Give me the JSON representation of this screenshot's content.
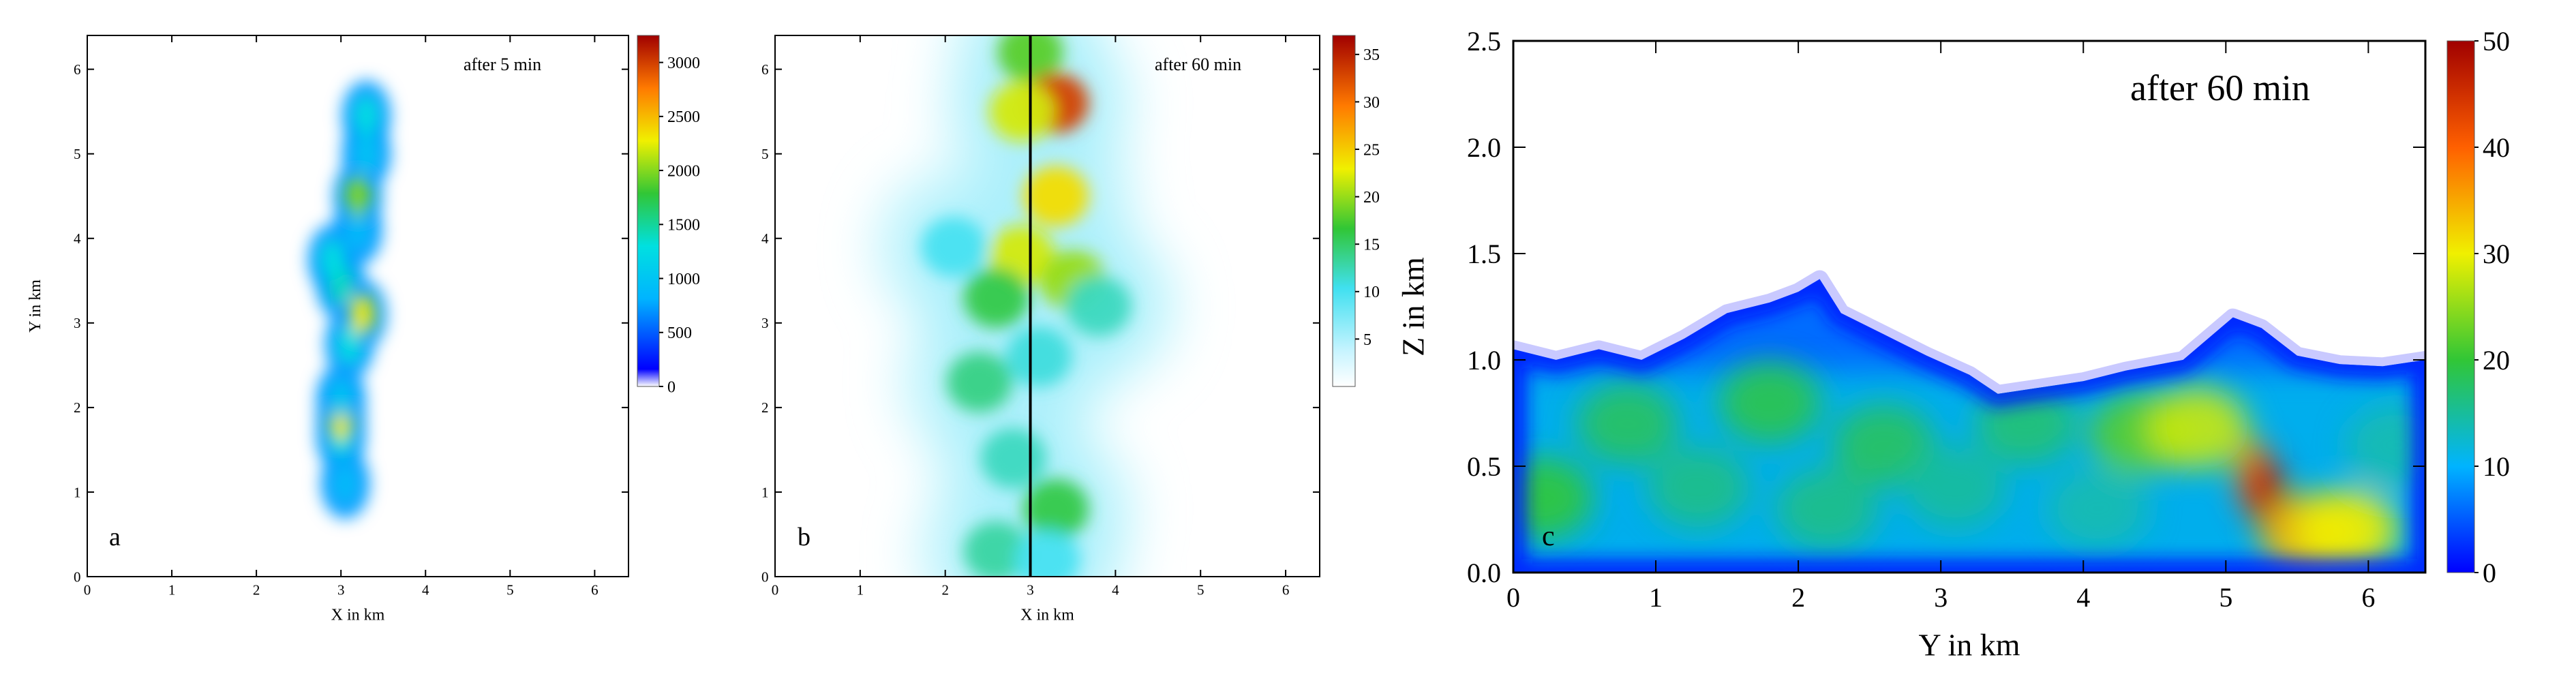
{
  "chart_data": [
    {
      "type": "heatmap",
      "panel_label": "a",
      "annotation": "after 5 min",
      "xlabel": "X in km",
      "ylabel": "Y in km",
      "xlim": [
        0,
        6.4
      ],
      "ylim": [
        0,
        6.4
      ],
      "xticks": [
        "0",
        "1",
        "2",
        "3",
        "4",
        "5",
        "6"
      ],
      "yticks": [
        "0",
        "1",
        "2",
        "3",
        "4",
        "5",
        "6"
      ],
      "colorbar": {
        "min": 0,
        "max": 3250,
        "ticks": [
          "0",
          "500",
          "1000",
          "1500",
          "2000",
          "2500",
          "3000"
        ]
      },
      "blobs": [
        {
          "x": 3.05,
          "y": 1.1,
          "v": 900
        },
        {
          "x": 3.0,
          "y": 1.65,
          "v": 1300
        },
        {
          "x": 3.0,
          "y": 1.85,
          "v": 2300
        },
        {
          "x": 3.0,
          "y": 2.1,
          "v": 1000
        },
        {
          "x": 3.1,
          "y": 2.75,
          "v": 1300
        },
        {
          "x": 3.25,
          "y": 3.1,
          "v": 2300
        },
        {
          "x": 3.0,
          "y": 3.45,
          "v": 1400
        },
        {
          "x": 2.9,
          "y": 3.75,
          "v": 1300
        },
        {
          "x": 3.2,
          "y": 4.1,
          "v": 900
        },
        {
          "x": 3.2,
          "y": 4.5,
          "v": 2000
        },
        {
          "x": 3.3,
          "y": 5.0,
          "v": 1000
        },
        {
          "x": 3.3,
          "y": 5.45,
          "v": 1300
        }
      ]
    },
    {
      "type": "heatmap",
      "panel_label": "b",
      "annotation": "after 60 min",
      "xlabel": "X in km",
      "ylabel": "",
      "xlim": [
        0,
        6.4
      ],
      "ylim": [
        0,
        6.4
      ],
      "xticks": [
        "0",
        "1",
        "2",
        "3",
        "4",
        "5",
        "6"
      ],
      "yticks": [
        "0",
        "1",
        "2",
        "3",
        "4",
        "5",
        "6"
      ],
      "cross_section_line_x": 3.0,
      "colorbar": {
        "min": 0,
        "max": 37,
        "ticks": [
          "5",
          "10",
          "15",
          "20",
          "25",
          "30",
          "35"
        ]
      },
      "blobs": [
        {
          "x": 3.0,
          "y": 6.2,
          "v": 18
        },
        {
          "x": 3.3,
          "y": 5.6,
          "v": 33
        },
        {
          "x": 2.9,
          "y": 5.5,
          "v": 22
        },
        {
          "x": 3.3,
          "y": 4.5,
          "v": 24
        },
        {
          "x": 2.9,
          "y": 3.8,
          "v": 22
        },
        {
          "x": 3.5,
          "y": 3.5,
          "v": 20
        },
        {
          "x": 2.6,
          "y": 3.3,
          "v": 16
        },
        {
          "x": 3.8,
          "y": 3.2,
          "v": 12
        },
        {
          "x": 2.1,
          "y": 3.9,
          "v": 10
        },
        {
          "x": 2.4,
          "y": 2.3,
          "v": 14
        },
        {
          "x": 3.1,
          "y": 2.6,
          "v": 11
        },
        {
          "x": 2.8,
          "y": 1.4,
          "v": 12
        },
        {
          "x": 3.3,
          "y": 0.8,
          "v": 16
        },
        {
          "x": 2.6,
          "y": 0.3,
          "v": 13
        },
        {
          "x": 3.2,
          "y": 0.2,
          "v": 10
        }
      ]
    },
    {
      "type": "heatmap",
      "panel_label": "c",
      "annotation": "after 60 min",
      "xlabel": "Y in km",
      "ylabel": "Z in km",
      "xlim": [
        0,
        6.4
      ],
      "ylim": [
        0,
        2.5
      ],
      "xticks": [
        "0",
        "1",
        "2",
        "3",
        "4",
        "5",
        "6"
      ],
      "yticks": [
        "0.0",
        "0.5",
        "1.0",
        "1.5",
        "2.0",
        "2.5"
      ],
      "colorbar": {
        "min": 0,
        "max": 50,
        "ticks": [
          "0",
          "10",
          "20",
          "30",
          "40",
          "50"
        ]
      },
      "cloud_top_km": [
        [
          0,
          1.05
        ],
        [
          0.3,
          1.0
        ],
        [
          0.6,
          1.05
        ],
        [
          0.9,
          1.0
        ],
        [
          1.2,
          1.1
        ],
        [
          1.5,
          1.22
        ],
        [
          1.8,
          1.27
        ],
        [
          2.0,
          1.32
        ],
        [
          2.15,
          1.38
        ],
        [
          2.3,
          1.22
        ],
        [
          2.6,
          1.12
        ],
        [
          2.9,
          1.02
        ],
        [
          3.2,
          0.93
        ],
        [
          3.4,
          0.84
        ],
        [
          3.7,
          0.87
        ],
        [
          4.0,
          0.9
        ],
        [
          4.3,
          0.95
        ],
        [
          4.7,
          1.0
        ],
        [
          5.05,
          1.2
        ],
        [
          5.25,
          1.15
        ],
        [
          5.5,
          1.02
        ],
        [
          5.8,
          0.98
        ],
        [
          6.1,
          0.97
        ],
        [
          6.4,
          1.0
        ]
      ],
      "blobs": [
        {
          "x": 0.2,
          "y": 0.35,
          "v": 20
        },
        {
          "x": 0.8,
          "y": 0.7,
          "v": 18
        },
        {
          "x": 1.3,
          "y": 0.4,
          "v": 16
        },
        {
          "x": 1.8,
          "y": 0.8,
          "v": 19
        },
        {
          "x": 2.2,
          "y": 0.3,
          "v": 16
        },
        {
          "x": 2.6,
          "y": 0.6,
          "v": 18
        },
        {
          "x": 3.1,
          "y": 0.4,
          "v": 15
        },
        {
          "x": 3.6,
          "y": 0.7,
          "v": 17
        },
        {
          "x": 4.1,
          "y": 0.3,
          "v": 14
        },
        {
          "x": 4.4,
          "y": 0.65,
          "v": 22
        },
        {
          "x": 4.8,
          "y": 0.68,
          "v": 28
        },
        {
          "x": 5.2,
          "y": 0.45,
          "v": 40
        },
        {
          "x": 5.3,
          "y": 0.35,
          "v": 48
        },
        {
          "x": 5.6,
          "y": 0.18,
          "v": 34
        },
        {
          "x": 5.85,
          "y": 0.2,
          "v": 30
        },
        {
          "x": 6.2,
          "y": 0.6,
          "v": 14
        }
      ]
    }
  ]
}
